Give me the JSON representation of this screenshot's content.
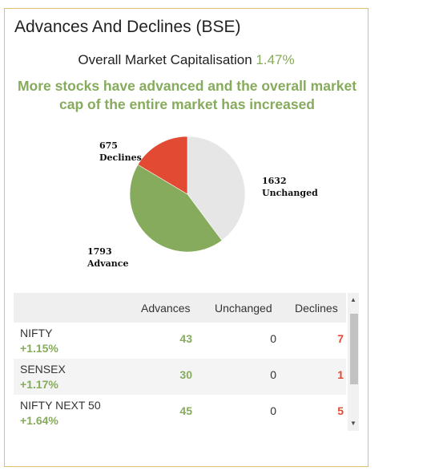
{
  "widget": {
    "title": "Advances And Declines (BSE)",
    "cap_label": "Overall Market Capitalisation",
    "cap_value": "1.47%",
    "message": "More stocks have advanced and the overall market cap of the entire market has increased"
  },
  "chart_data": {
    "type": "pie",
    "slices": [
      {
        "label": "Unchanged",
        "value": 1632,
        "color": "#e6e6e6"
      },
      {
        "label": "Advance",
        "value": 1793,
        "color": "#86ab5c"
      },
      {
        "label": "Declines",
        "value": 675,
        "color": "#e24a33"
      }
    ],
    "labels": {
      "declines_value": "675",
      "declines_label": "Declines",
      "unchanged_value": "1632",
      "unchanged_label": "Unchanged",
      "advance_value": "1793",
      "advance_label": "Advance"
    }
  },
  "table": {
    "headers": {
      "advances": "Advances",
      "unchanged": "Unchanged",
      "declines": "Declines"
    },
    "rows": [
      {
        "name": "NIFTY",
        "change": "+1.15%",
        "advances": "43",
        "unchanged": "0",
        "declines": "7"
      },
      {
        "name": "SENSEX",
        "change": "+1.17%",
        "advances": "30",
        "unchanged": "0",
        "declines": "1"
      },
      {
        "name": "NIFTY NEXT 50",
        "change": "+1.64%",
        "advances": "45",
        "unchanged": "0",
        "declines": "5"
      }
    ]
  },
  "scrollbar": {
    "up_icon": "▲",
    "down_icon": "▼"
  }
}
